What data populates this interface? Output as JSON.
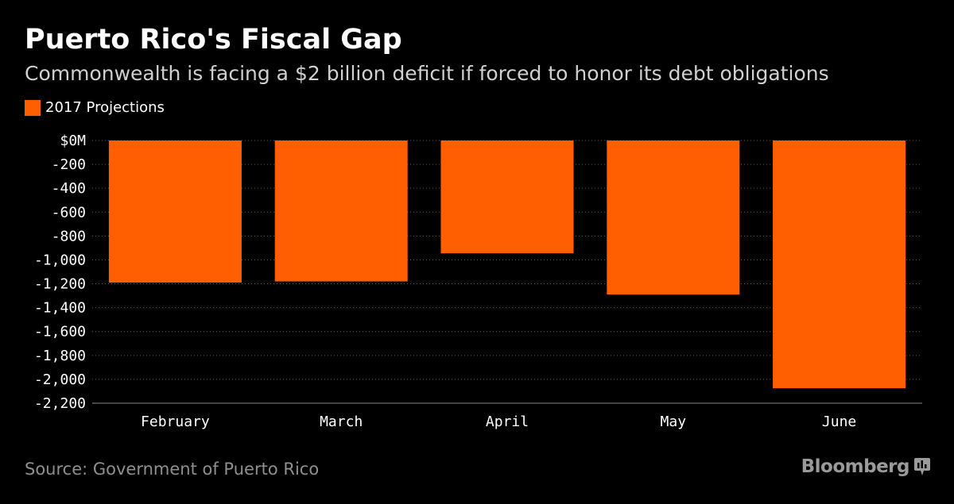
{
  "header": {
    "title": "Puerto Rico's Fiscal Gap",
    "subtitle": "Commonwealth is facing a $2 billion deficit if forced to honor its debt obligations"
  },
  "legend": {
    "label": "2017 Projections",
    "color": "#ff5f00"
  },
  "footer": {
    "source": "Source: Government of Puerto Rico",
    "brand": "Bloomberg",
    "brand_icon": "bloomberg-terminal-icon"
  },
  "colors": {
    "background": "#000000",
    "bar": "#ff5f00",
    "grid": "#5a5a5a",
    "text": "#ffffff"
  },
  "chart_data": {
    "type": "bar",
    "categories": [
      "February",
      "March",
      "April",
      "May",
      "June"
    ],
    "series": [
      {
        "name": "2017 Projections",
        "values": [
          -1190,
          -1180,
          -945,
          -1290,
          -2075
        ]
      }
    ],
    "ylim": [
      -2200,
      0
    ],
    "yticks": [
      0,
      -200,
      -400,
      -600,
      -800,
      -1000,
      -1200,
      -1400,
      -1600,
      -1800,
      -2000,
      -2200
    ],
    "ytick_labels": [
      "$0M",
      "-200",
      "-400",
      "-600",
      "-800",
      "-1,000",
      "-1,200",
      "-1,400",
      "-1,600",
      "-1,800",
      "-2,000",
      "-2,200"
    ],
    "grid": true,
    "legend_position": "top-left"
  }
}
